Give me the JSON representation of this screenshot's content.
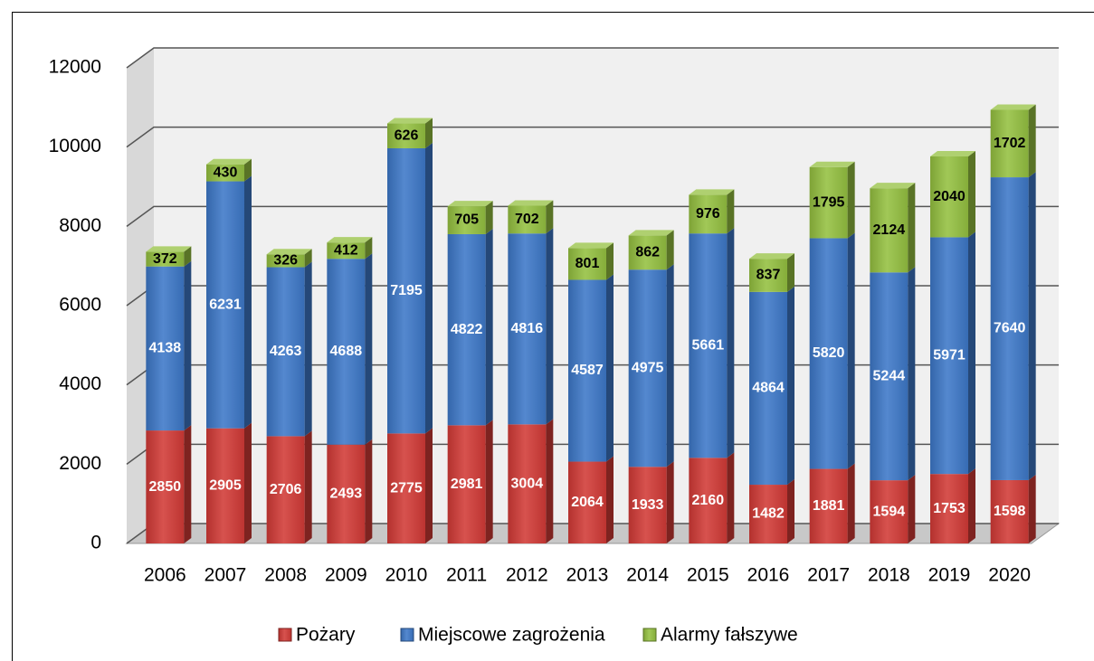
{
  "chart_data": {
    "type": "bar3d_stacked",
    "categories": [
      "2006",
      "2007",
      "2008",
      "2009",
      "2010",
      "2011",
      "2012",
      "2013",
      "2014",
      "2015",
      "2016",
      "2017",
      "2018",
      "2019",
      "2020"
    ],
    "series": [
      {
        "name": "Pożary",
        "color": "#d23a36",
        "values": [
          2850,
          2905,
          2706,
          2493,
          2775,
          2981,
          3004,
          2064,
          1933,
          2160,
          1482,
          1881,
          1594,
          1753,
          1598
        ]
      },
      {
        "name": "Miejscowe zagrożenia",
        "color": "#3d78c8",
        "values": [
          4138,
          6231,
          4263,
          4688,
          7195,
          4822,
          4816,
          4587,
          4975,
          5661,
          4864,
          5820,
          5244,
          5971,
          7640
        ]
      },
      {
        "name": "Alarmy fałszywe",
        "color": "#94c040",
        "values": [
          372,
          430,
          326,
          412,
          626,
          705,
          702,
          801,
          862,
          976,
          837,
          1795,
          2124,
          2040,
          1702
        ]
      }
    ],
    "ylim": [
      0,
      12000
    ],
    "yticks": [
      0,
      2000,
      4000,
      6000,
      8000,
      10000,
      12000
    ],
    "grid": true,
    "legend": "bottom"
  }
}
